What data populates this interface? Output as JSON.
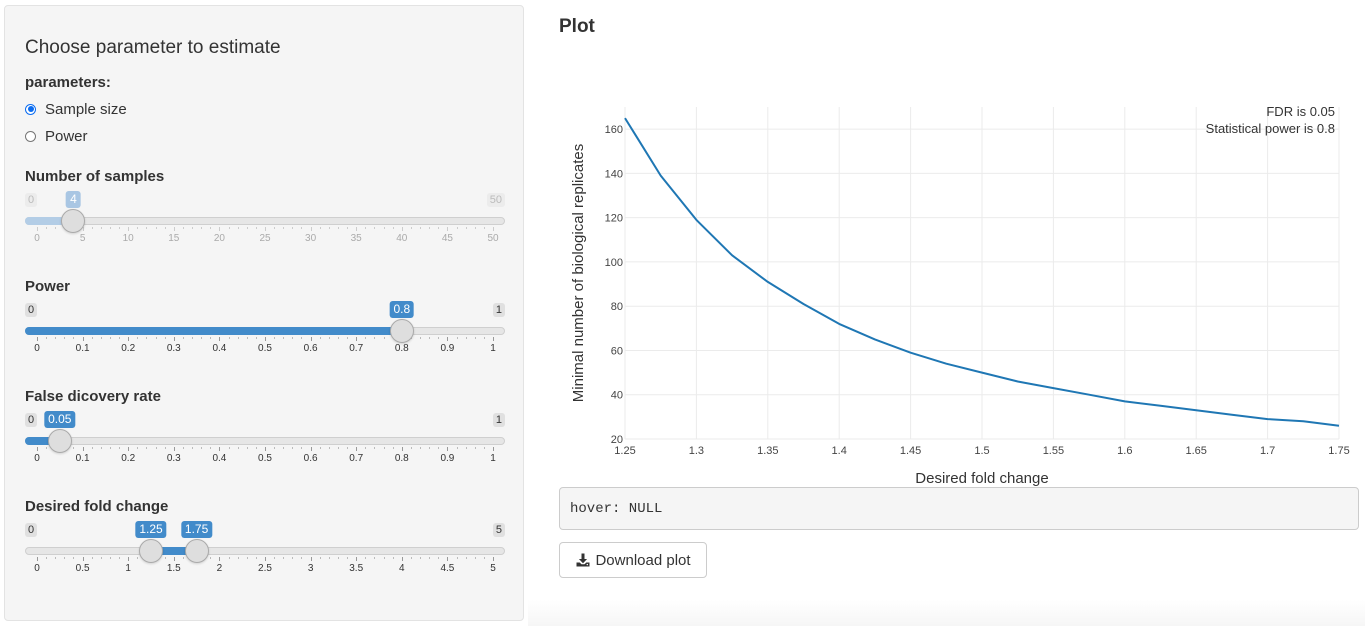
{
  "sidebar": {
    "title": "Choose parameter to estimate",
    "parameters_label": "parameters:",
    "radio_options": [
      {
        "label": "Sample size",
        "checked": true
      },
      {
        "label": "Power",
        "checked": false
      }
    ],
    "sliders": [
      {
        "label": "Number of samples",
        "min": 0,
        "max": 50,
        "min_label": "0",
        "max_label": "50",
        "value_labels": [
          "4"
        ],
        "values": [
          4
        ],
        "ticks": [
          "0",
          "5",
          "10",
          "15",
          "20",
          "25",
          "30",
          "35",
          "40",
          "45",
          "50"
        ],
        "inactive": true
      },
      {
        "label": "Power",
        "min": 0,
        "max": 1,
        "min_label": "0",
        "max_label": "1",
        "value_labels": [
          "0.8"
        ],
        "values": [
          0.8
        ],
        "ticks": [
          "0",
          "0.1",
          "0.2",
          "0.3",
          "0.4",
          "0.5",
          "0.6",
          "0.7",
          "0.8",
          "0.9",
          "1"
        ],
        "inactive": false
      },
      {
        "label": "False dicovery rate",
        "min": 0,
        "max": 1,
        "min_label": "0",
        "max_label": "1",
        "value_labels": [
          "0.05"
        ],
        "values": [
          0.05
        ],
        "ticks": [
          "0",
          "0.1",
          "0.2",
          "0.3",
          "0.4",
          "0.5",
          "0.6",
          "0.7",
          "0.8",
          "0.9",
          "1"
        ],
        "inactive": false
      },
      {
        "label": "Desired fold change",
        "min": 0,
        "max": 5,
        "min_label": "0",
        "max_label": "5",
        "value_labels": [
          "1.25",
          "1.75"
        ],
        "values": [
          1.25,
          1.75
        ],
        "ticks": [
          "0",
          "0.5",
          "1",
          "1.5",
          "2",
          "2.5",
          "3",
          "3.5",
          "4",
          "4.5",
          "5"
        ],
        "inactive": false
      }
    ]
  },
  "main": {
    "title": "Plot",
    "hover_text": "hover: NULL",
    "download_label": "Download plot"
  },
  "chart_data": {
    "type": "line",
    "title": "",
    "xlabel": "Desired fold change",
    "ylabel": "Minimal number of biological replicates",
    "xlim": [
      1.25,
      1.75
    ],
    "ylim": [
      20,
      170
    ],
    "xticks": [
      "1.25",
      "1.3",
      "1.35",
      "1.4",
      "1.45",
      "1.5",
      "1.55",
      "1.6",
      "1.65",
      "1.7",
      "1.75"
    ],
    "yticks": [
      "20",
      "40",
      "60",
      "80",
      "100",
      "120",
      "140",
      "160"
    ],
    "annotations": [
      "FDR is 0.05",
      "Statistical power is 0.8"
    ],
    "grid": true,
    "line_color": "#1f77b4",
    "series": [
      {
        "x": [
          1.25,
          1.275,
          1.3,
          1.325,
          1.35,
          1.375,
          1.4,
          1.425,
          1.45,
          1.475,
          1.5,
          1.525,
          1.55,
          1.575,
          1.6,
          1.625,
          1.65,
          1.675,
          1.7,
          1.725,
          1.75
        ],
        "values": [
          165,
          139,
          119,
          103,
          91,
          81,
          72,
          65,
          59,
          54,
          50,
          46,
          43,
          40,
          37,
          35,
          33,
          31,
          29,
          28,
          26
        ]
      }
    ]
  }
}
